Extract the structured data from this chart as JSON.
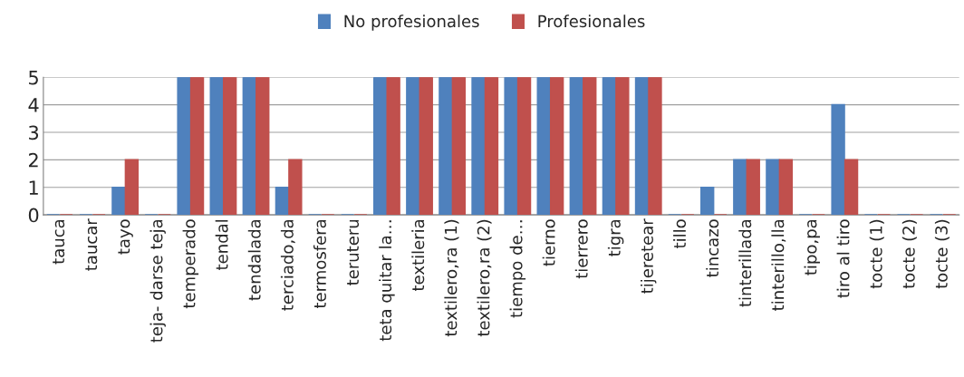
{
  "chart_data": {
    "type": "bar",
    "categories": [
      "tauca",
      "taucar",
      "tayo",
      "teja- darse teja",
      "temperado",
      "tendal",
      "tendalada",
      "terciado,da",
      "termosfera",
      "teruteru",
      "teta quitar la…",
      "textileria",
      "textilero,ra (1)",
      "textilero,ra (2)",
      "tiempo de…",
      "tierno",
      "tierrero",
      "tigra",
      "tijeretear",
      "tillo",
      "tincazo",
      "tinterillada",
      "tinterillo,lla",
      "tipo,pa",
      "tiro al tiro",
      "tocte (1)",
      "tocte (2)",
      "tocte (3)"
    ],
    "series": [
      {
        "name": "No profesionales",
        "color": "#4f81bd",
        "values": [
          0,
          0,
          1,
          0,
          5,
          5,
          5,
          1,
          0,
          0,
          5,
          5,
          5,
          5,
          5,
          5,
          5,
          5,
          5,
          0,
          1,
          2,
          2,
          0,
          4,
          0,
          0,
          0
        ]
      },
      {
        "name": "Profesionales",
        "color": "#c0504d",
        "values": [
          0,
          0,
          2,
          0,
          5,
          5,
          5,
          2,
          0,
          0,
          5,
          5,
          5,
          5,
          5,
          5,
          5,
          5,
          5,
          0,
          0,
          2,
          2,
          0,
          2,
          0,
          0,
          0
        ]
      }
    ],
    "ylim": [
      0,
      5
    ],
    "yticks": [
      0,
      1,
      2,
      3,
      4,
      5
    ],
    "grid": "y",
    "legend": "top"
  }
}
